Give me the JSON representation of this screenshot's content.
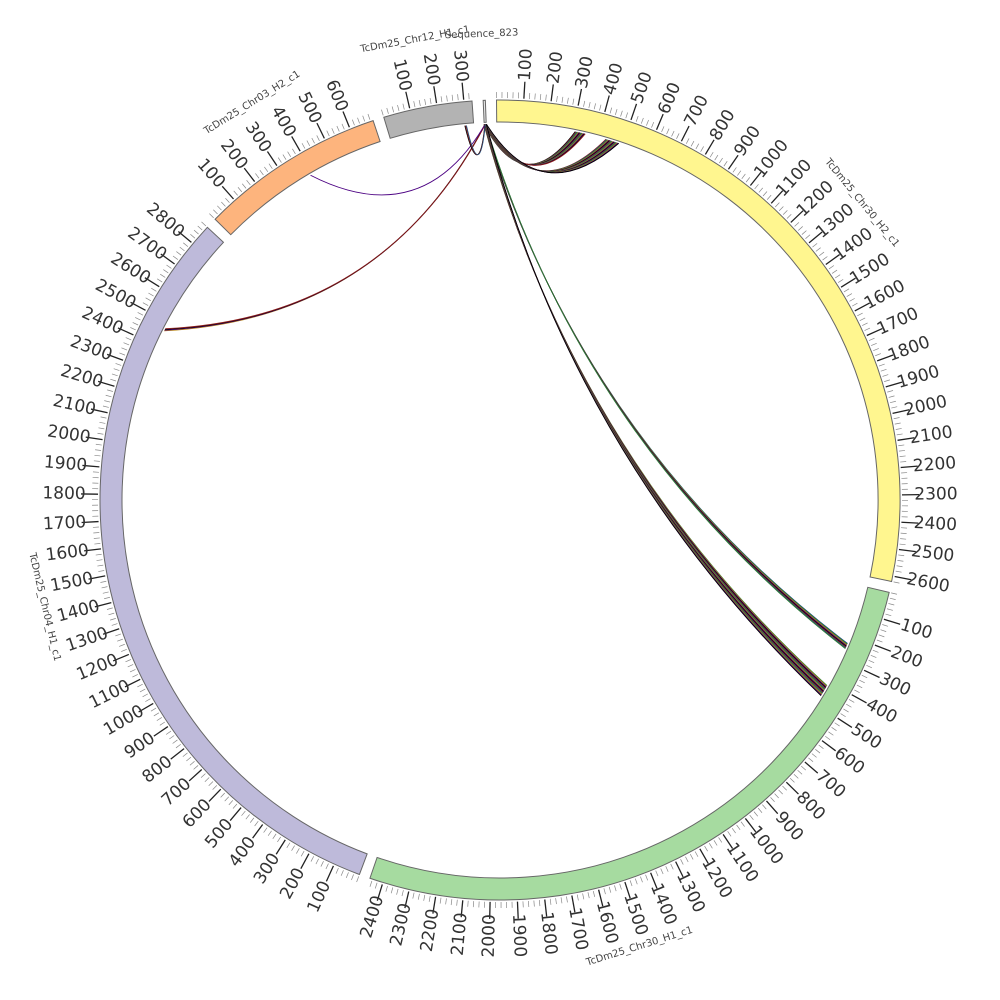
{
  "chart_data": {
    "type": "chord",
    "segments": [
      {
        "name": "TcDm25_Chr30_H2_c1",
        "length": 2620,
        "color": "#FFF68F",
        "tick_max": 2600
      },
      {
        "name": "TcDm25_Chr30_H1_c1",
        "length": 2450,
        "color": "#A6DBA0",
        "tick_max": 2400
      },
      {
        "name": "TcDm25_Chr04_H1_c1",
        "length": 2880,
        "color": "#BEBADA",
        "tick_max": 2800
      },
      {
        "name": "TcDm25_Chr03_H2_c1",
        "length": 690,
        "color": "#FDB47D",
        "tick_max": 600
      },
      {
        "name": "TcDm25_Chr12_H1_c1",
        "length": 330,
        "color": "#B3B3B3",
        "tick_max": 300
      },
      {
        "name": "Sequence_823",
        "length": 8,
        "color": "#E5E5E5",
        "tick_max": 0
      }
    ],
    "major_tick_step": 100,
    "minor_tick_step": 20,
    "links": [
      {
        "source": "Sequence_823",
        "s": 4,
        "target": "TcDm25_Chr30_H2_c1",
        "t": 330,
        "count": 14
      },
      {
        "source": "Sequence_823",
        "s": 4,
        "target": "TcDm25_Chr30_H2_c1",
        "t": 460,
        "count": 18
      },
      {
        "source": "Sequence_823",
        "s": 4,
        "target": "TcDm25_Chr30_H1_c1",
        "t": 245,
        "count": 8
      },
      {
        "source": "Sequence_823",
        "s": 4,
        "target": "TcDm25_Chr30_H1_c1",
        "t": 440,
        "count": 16
      },
      {
        "source": "Sequence_823",
        "s": 4,
        "target": "TcDm25_Chr04_H1_c1",
        "t": 2470,
        "count": 4
      },
      {
        "source": "Sequence_823",
        "s": 4,
        "target": "TcDm25_Chr03_H2_c1",
        "t": 390,
        "count": 1
      },
      {
        "source": "Sequence_823",
        "s": 4,
        "target": "TcDm25_Chr12_H1_c1",
        "t": 300,
        "count": 3
      }
    ],
    "link_colors": [
      "#000000",
      "#8B1A1A",
      "#1F4E79",
      "#2E7D32",
      "#B8860B",
      "#4B0082"
    ]
  }
}
